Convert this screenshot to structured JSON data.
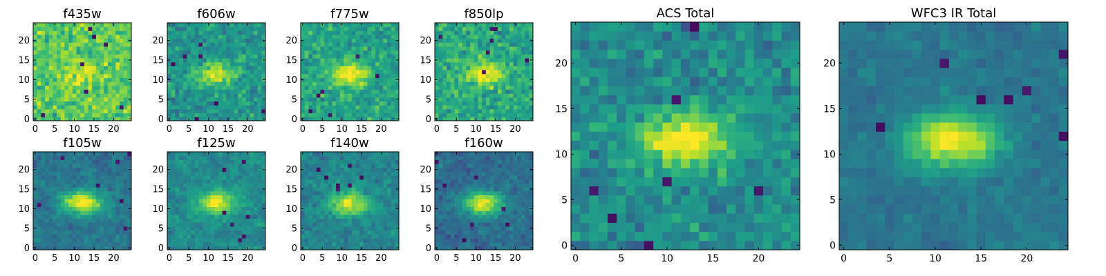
{
  "chart_data": [
    {
      "type": "heatmap",
      "title": "f435w",
      "xticks": [
        "0",
        "5",
        "10",
        "15",
        "20"
      ],
      "yticks": [
        "0",
        "5",
        "10",
        "15",
        "20"
      ],
      "xlim": [
        0,
        25
      ],
      "ylim": [
        0,
        25
      ],
      "grid": false,
      "colormap": "viridis"
    },
    {
      "type": "heatmap",
      "title": "f606w",
      "xticks": [
        "0",
        "5",
        "10",
        "15",
        "20"
      ],
      "yticks": [
        "0",
        "5",
        "10",
        "15",
        "20"
      ],
      "xlim": [
        0,
        25
      ],
      "ylim": [
        0,
        25
      ],
      "grid": false,
      "colormap": "viridis"
    },
    {
      "type": "heatmap",
      "title": "f775w",
      "xticks": [
        "0",
        "5",
        "10",
        "15",
        "20"
      ],
      "yticks": [
        "0",
        "5",
        "10",
        "15",
        "20"
      ],
      "xlim": [
        0,
        25
      ],
      "ylim": [
        0,
        25
      ],
      "grid": false,
      "colormap": "viridis"
    },
    {
      "type": "heatmap",
      "title": "f850lp",
      "xticks": [
        "0",
        "5",
        "10",
        "15",
        "20"
      ],
      "yticks": [
        "0",
        "5",
        "10",
        "15",
        "20"
      ],
      "xlim": [
        0,
        25
      ],
      "ylim": [
        0,
        25
      ],
      "grid": false,
      "colormap": "viridis"
    },
    {
      "type": "heatmap",
      "title": "f105w",
      "xticks": [
        "0",
        "5",
        "10",
        "15",
        "20"
      ],
      "yticks": [
        "0",
        "5",
        "10",
        "15",
        "20"
      ],
      "xlim": [
        0,
        25
      ],
      "ylim": [
        0,
        25
      ],
      "grid": false,
      "colormap": "viridis"
    },
    {
      "type": "heatmap",
      "title": "f125w",
      "xticks": [
        "0",
        "5",
        "10",
        "15",
        "20"
      ],
      "yticks": [
        "0",
        "5",
        "10",
        "15",
        "20"
      ],
      "xlim": [
        0,
        25
      ],
      "ylim": [
        0,
        25
      ],
      "grid": false,
      "colormap": "viridis"
    },
    {
      "type": "heatmap",
      "title": "f140w",
      "xticks": [
        "0",
        "5",
        "10",
        "15",
        "20"
      ],
      "yticks": [
        "0",
        "5",
        "10",
        "15",
        "20"
      ],
      "xlim": [
        0,
        25
      ],
      "ylim": [
        0,
        25
      ],
      "grid": false,
      "colormap": "viridis"
    },
    {
      "type": "heatmap",
      "title": "f160w",
      "xticks": [
        "0",
        "5",
        "10",
        "15",
        "20"
      ],
      "yticks": [
        "0",
        "5",
        "10",
        "15",
        "20"
      ],
      "xlim": [
        0,
        25
      ],
      "ylim": [
        0,
        25
      ],
      "grid": false,
      "colormap": "viridis"
    },
    {
      "type": "heatmap",
      "title": "ACS Total",
      "xticks": [
        "0",
        "5",
        "10",
        "15",
        "20"
      ],
      "yticks": [
        "0",
        "5",
        "10",
        "15",
        "20"
      ],
      "xlim": [
        0,
        25
      ],
      "ylim": [
        0,
        25
      ],
      "grid": false,
      "colormap": "viridis"
    },
    {
      "type": "heatmap",
      "title": "WFC3 IR Total",
      "xticks": [
        "0",
        "5",
        "10",
        "15",
        "20"
      ],
      "yticks": [
        "0",
        "5",
        "10",
        "15",
        "20"
      ],
      "xlim": [
        0,
        25
      ],
      "ylim": [
        0,
        25
      ],
      "grid": false,
      "colormap": "viridis"
    }
  ]
}
